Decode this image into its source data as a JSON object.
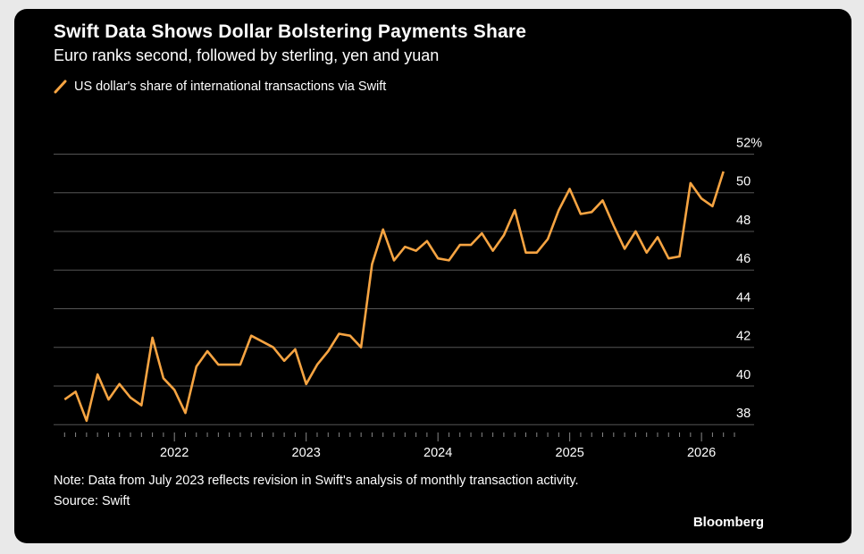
{
  "header": {
    "title": "Swift Data Shows Dollar Bolstering Payments Share",
    "subtitle": "Euro ranks second, followed by sterling, yen and yuan"
  },
  "footer": {
    "note": "Note: Data from July 2023 reflects revision in Swift's analysis of monthly transaction activity.",
    "source": "Source: Swift",
    "brand": "Bloomberg"
  },
  "colors": {
    "line": "#f6a442",
    "grid": "#555555",
    "background": "#000000"
  },
  "chart_data": {
    "type": "line",
    "series": [
      {
        "name": "US dollar's share of international transactions via Swift",
        "x": [
          "2021-03",
          "2021-04",
          "2021-05",
          "2021-06",
          "2021-07",
          "2021-08",
          "2021-09",
          "2021-10",
          "2021-11",
          "2021-12",
          "2022-01",
          "2022-02",
          "2022-03",
          "2022-04",
          "2022-05",
          "2022-06",
          "2022-07",
          "2022-08",
          "2022-09",
          "2022-10",
          "2022-11",
          "2022-12",
          "2023-01",
          "2023-02",
          "2023-03",
          "2023-04",
          "2023-05",
          "2023-06",
          "2023-07",
          "2023-08",
          "2023-09",
          "2023-10",
          "2023-11",
          "2023-12",
          "2024-01",
          "2024-02",
          "2024-03",
          "2024-04",
          "2024-05",
          "2024-06",
          "2024-07",
          "2024-08",
          "2024-09",
          "2024-10",
          "2024-11",
          "2024-12",
          "2025-01",
          "2025-02",
          "2025-03",
          "2025-04",
          "2025-05",
          "2025-06",
          "2025-07",
          "2025-08",
          "2025-09",
          "2025-10",
          "2025-11",
          "2025-12",
          "2026-01",
          "2026-02",
          "2026-03"
        ],
        "values": [
          39.3,
          39.7,
          38.2,
          40.6,
          39.3,
          40.1,
          39.4,
          39.0,
          42.5,
          40.4,
          39.8,
          38.6,
          41.0,
          41.8,
          41.1,
          41.1,
          41.1,
          42.6,
          42.3,
          42.0,
          41.3,
          41.9,
          40.1,
          41.1,
          41.8,
          42.7,
          42.6,
          42.0,
          46.3,
          48.1,
          46.5,
          47.2,
          47.0,
          47.5,
          46.6,
          46.5,
          47.3,
          47.3,
          47.9,
          47.0,
          47.8,
          49.1,
          46.9,
          46.9,
          47.6,
          49.1,
          50.2,
          48.9,
          49.0,
          49.6,
          48.3,
          47.1,
          48.0,
          46.9,
          47.7,
          46.6,
          46.7,
          50.5,
          49.7,
          49.3,
          51.1
        ]
      }
    ],
    "x_ticks": [
      "2022",
      "2023",
      "2024",
      "2025",
      "2026"
    ],
    "y_ticks": [
      38,
      40,
      42,
      44,
      46,
      48,
      50,
      52
    ],
    "y_tick_labels": [
      "38",
      "40",
      "42",
      "44",
      "46",
      "48",
      "50",
      "52%"
    ],
    "ylim": [
      37.5,
      53.5
    ],
    "xlim": [
      "2021-02",
      "2026-04"
    ],
    "grid": true,
    "y_axis_side": "right",
    "legend_position": "top-left"
  }
}
